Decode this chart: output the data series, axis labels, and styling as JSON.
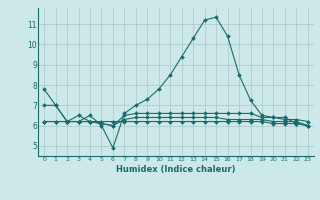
{
  "xlabel": "Humidex (Indice chaleur)",
  "background_color": "#cce8e8",
  "line_color": "#1a6b6b",
  "grid_color": "#aac8c8",
  "xlim": [
    -0.5,
    23.5
  ],
  "ylim": [
    4.5,
    11.8
  ],
  "yticks": [
    5,
    6,
    7,
    8,
    9,
    10,
    11
  ],
  "xticks": [
    0,
    1,
    2,
    3,
    4,
    5,
    6,
    7,
    8,
    9,
    10,
    11,
    12,
    13,
    14,
    15,
    16,
    17,
    18,
    19,
    20,
    21,
    22,
    23
  ],
  "lines": [
    [
      7.8,
      7.0,
      6.2,
      6.2,
      6.5,
      6.0,
      4.9,
      6.6,
      7.0,
      7.3,
      7.8,
      8.5,
      9.4,
      10.3,
      11.2,
      11.35,
      10.4,
      8.5,
      7.25,
      6.5,
      6.4,
      6.4,
      6.1,
      6.0
    ],
    [
      7.0,
      7.0,
      6.2,
      6.5,
      6.2,
      6.1,
      6.0,
      6.5,
      6.6,
      6.6,
      6.6,
      6.6,
      6.6,
      6.6,
      6.6,
      6.6,
      6.6,
      6.6,
      6.6,
      6.4,
      6.4,
      6.3,
      6.3,
      6.2
    ],
    [
      6.2,
      6.2,
      6.2,
      6.2,
      6.2,
      6.1,
      6.0,
      6.3,
      6.4,
      6.4,
      6.4,
      6.4,
      6.4,
      6.4,
      6.4,
      6.4,
      6.3,
      6.3,
      6.3,
      6.3,
      6.2,
      6.2,
      6.2,
      6.0
    ],
    [
      6.2,
      6.2,
      6.2,
      6.2,
      6.2,
      6.2,
      6.2,
      6.2,
      6.2,
      6.2,
      6.2,
      6.2,
      6.2,
      6.2,
      6.2,
      6.2,
      6.2,
      6.2,
      6.2,
      6.2,
      6.1,
      6.1,
      6.1,
      6.0
    ]
  ]
}
